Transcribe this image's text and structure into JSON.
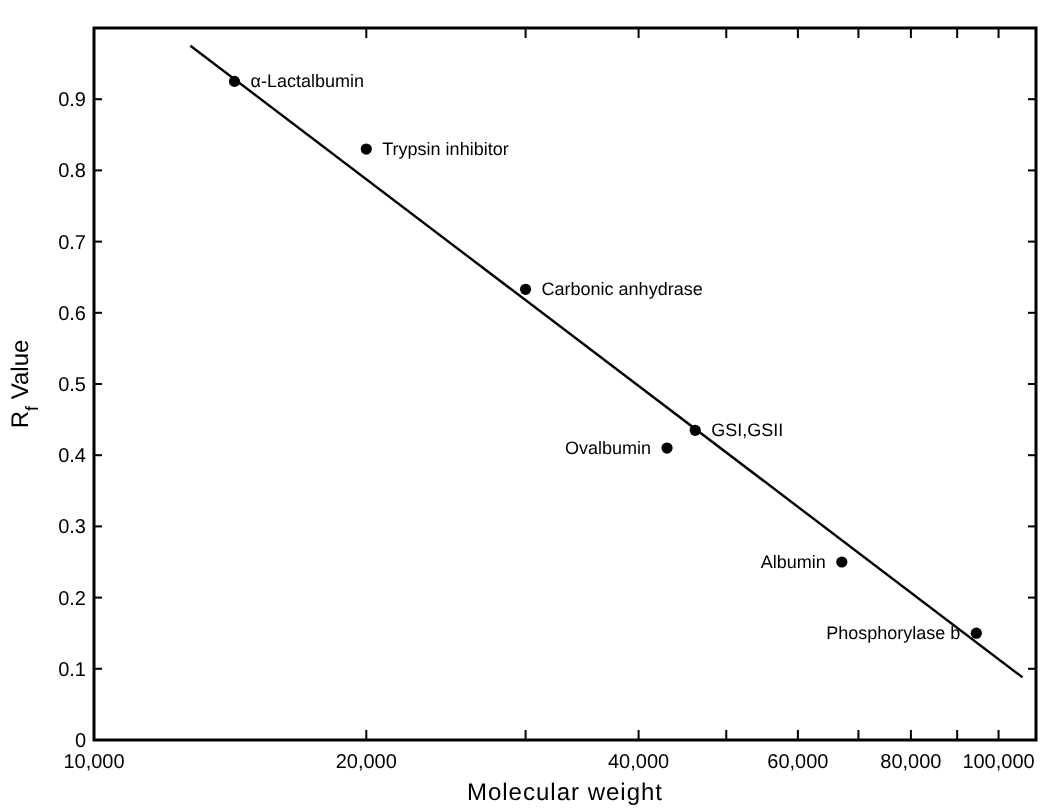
{
  "chart_data": {
    "type": "scatter",
    "xlabel": "Molecular weight",
    "ylabel": "R$_{f}$ Value",
    "log": "x",
    "xlim": [
      10000,
      110000
    ],
    "ylim": [
      0,
      1
    ],
    "xticks": [
      {
        "value": 10000,
        "label": "10,000"
      },
      {
        "value": 20000,
        "label": "20,000"
      },
      {
        "value": 30000,
        "label": null
      },
      {
        "value": 40000,
        "label": "40,000"
      },
      {
        "value": 50000,
        "label": null
      },
      {
        "value": 60000,
        "label": "60,000"
      },
      {
        "value": 70000,
        "label": null
      },
      {
        "value": 80000,
        "label": "80,000"
      },
      {
        "value": 90000,
        "label": null
      },
      {
        "value": 100000,
        "label": "100,000"
      }
    ],
    "yticks": [
      0,
      0.1,
      0.2,
      0.3,
      0.4,
      0.5,
      0.6,
      0.7,
      0.8,
      0.9,
      {
        "value": 1,
        "label": null
      }
    ],
    "grid": false,
    "series": [
      {
        "marker": "circle",
        "color": "#000000",
        "x": [
          14300,
          20000,
          30000,
          46200,
          43000,
          67100,
          94500
        ],
        "values": [
          0.925,
          0.83,
          0.633,
          0.435,
          0.41,
          0.25,
          0.15
        ]
      },
      {
        "type": "line",
        "color": "#000000",
        "x": [
          12780,
          106300
        ],
        "values": [
          0.975,
          0.088
        ]
      }
    ],
    "annotations": [
      {
        "text": "α-Lactalbumin",
        "x": 14300,
        "y": 0.925
      },
      {
        "text": "Trypsin inhibitor",
        "x": 20000,
        "y": 0.83
      },
      {
        "text": "Carbonic anhydrase",
        "x": 30000,
        "y": 0.633
      },
      {
        "text": "GSI,GSII",
        "x": 46200,
        "y": 0.435
      },
      {
        "text": "Ovalbumin",
        "x": 43000,
        "y": 0.41
      },
      {
        "text": "Albumin",
        "x": 67100,
        "y": 0.25
      },
      {
        "text": "Phosphorylase b",
        "x": 94500,
        "y": 0.15
      }
    ]
  }
}
